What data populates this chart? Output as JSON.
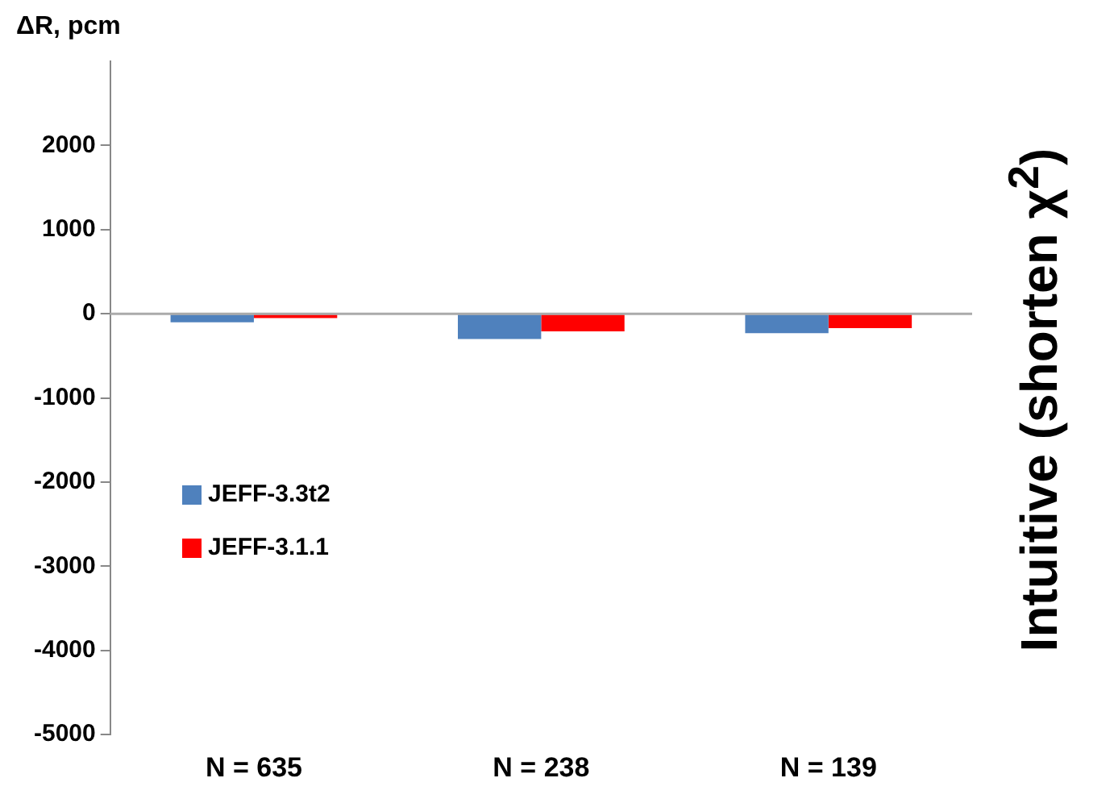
{
  "chart_data": {
    "type": "bar",
    "ylabel": "ΔR, pcm",
    "categories": [
      "N = 635",
      "N = 238",
      "N = 139"
    ],
    "series": [
      {
        "name": "JEFF-3.3t2",
        "color": "#4f81bd",
        "values": [
          -100,
          -300,
          -230
        ]
      },
      {
        "name": "JEFF-3.1.1",
        "color": "#ff0000",
        "values": [
          -50,
          -210,
          -170
        ]
      }
    ],
    "ylim": [
      -5000,
      3000
    ],
    "yticks": [
      -5000,
      -4000,
      -3000,
      -2000,
      -1000,
      0,
      1000,
      2000
    ],
    "grid": false,
    "legend": "left",
    "ref_lines": [
      {
        "axis": "y",
        "value": 0,
        "color": "#aaaaaa"
      }
    ],
    "annotations": [
      "Intuitive (shorten χ$^{2}$)"
    ]
  }
}
